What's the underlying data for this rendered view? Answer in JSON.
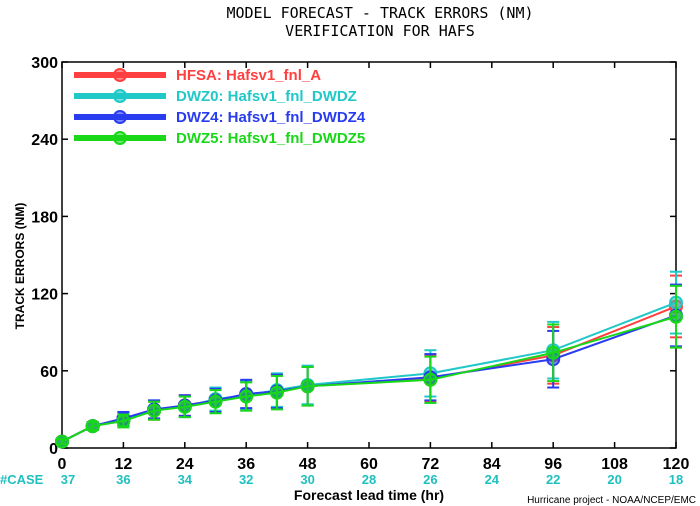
{
  "chart_data": {
    "type": "line",
    "title": "MODEL FORECAST - TRACK ERRORS (NM)",
    "subtitle": "VERIFICATION FOR HAFS",
    "xlabel": "Forecast lead time (hr)",
    "ylabel": "TRACK ERRORS (NM)",
    "xlim": [
      0,
      120
    ],
    "ylim": [
      0,
      300
    ],
    "xticks": [
      "0",
      "12",
      "24",
      "36",
      "48",
      "60",
      "72",
      "84",
      "96",
      "108",
      "120"
    ],
    "yticks": [
      "0",
      "60",
      "120",
      "180",
      "240",
      "300"
    ],
    "x": [
      0,
      6,
      12,
      18,
      24,
      30,
      36,
      42,
      48,
      72,
      96,
      120
    ],
    "case_label": "#CASE",
    "cases": [
      "37",
      "36",
      "34",
      "32",
      "30",
      "28",
      "26",
      "24",
      "22",
      "20",
      "18"
    ],
    "series": [
      {
        "name": "HFSA: Hafsv1_fnl_A",
        "color": "#ff4040",
        "values": [
          5,
          17,
          22,
          29,
          33,
          37,
          41,
          44,
          48,
          54,
          72,
          110
        ],
        "err": [
          2,
          3,
          5,
          7,
          8,
          9,
          11,
          13,
          15,
          18,
          22,
          24
        ]
      },
      {
        "name": "DWZ0: Hafsv1_fnl_DWDZ",
        "color": "#20c8c8",
        "values": [
          5,
          17,
          22,
          30,
          32,
          38,
          41,
          45,
          49,
          58,
          76,
          113
        ],
        "err": [
          2,
          3,
          5,
          7,
          8,
          9,
          11,
          13,
          15,
          18,
          22,
          24
        ]
      },
      {
        "name": "DWZ4: Hafsv1_fnl_DWDZ4",
        "color": "#2a3cf0",
        "values": [
          5,
          17,
          23,
          30,
          33,
          37,
          42,
          44,
          48,
          55,
          69,
          103
        ],
        "err": [
          2,
          3,
          5,
          7,
          8,
          9,
          11,
          13,
          15,
          18,
          22,
          24
        ]
      },
      {
        "name": "DWZ5: Hafsv1_fnl_DWDZ5",
        "color": "#18d818",
        "values": [
          5,
          17,
          21,
          29,
          32,
          36,
          40,
          43,
          48,
          53,
          74,
          102
        ],
        "err": [
          2,
          3,
          5,
          7,
          8,
          9,
          11,
          13,
          15,
          18,
          22,
          24
        ]
      }
    ],
    "legend_placement": "top-left",
    "grid": false
  },
  "credit": "Hurricane project - NOAA/NCEP/EMC"
}
